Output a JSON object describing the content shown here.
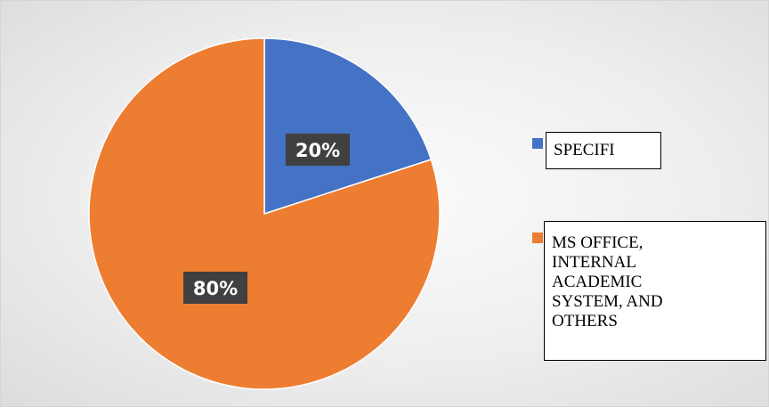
{
  "chart_data": {
    "type": "pie",
    "title": "",
    "slices": [
      {
        "label": "SPECIFI",
        "value": 20,
        "data_label": "20%",
        "color": "#4472C4"
      },
      {
        "label": "MS OFFICE, INTERNAL ACADEMIC SYSTEM, AND OTHERS",
        "value": 80,
        "data_label": "80%",
        "color": "#ED7D31"
      }
    ],
    "legend_placement": "right",
    "start_angle_deg": 0,
    "direction": "clockwise"
  },
  "legend": {
    "items": [
      {
        "label": "SPECIFI",
        "color": "#4472C4"
      },
      {
        "label_lines": [
          "MS OFFICE,",
          "INTERNAL",
          "ACADEMIC",
          "SYSTEM, AND",
          "OTHERS"
        ],
        "color": "#ED7D31"
      }
    ]
  }
}
